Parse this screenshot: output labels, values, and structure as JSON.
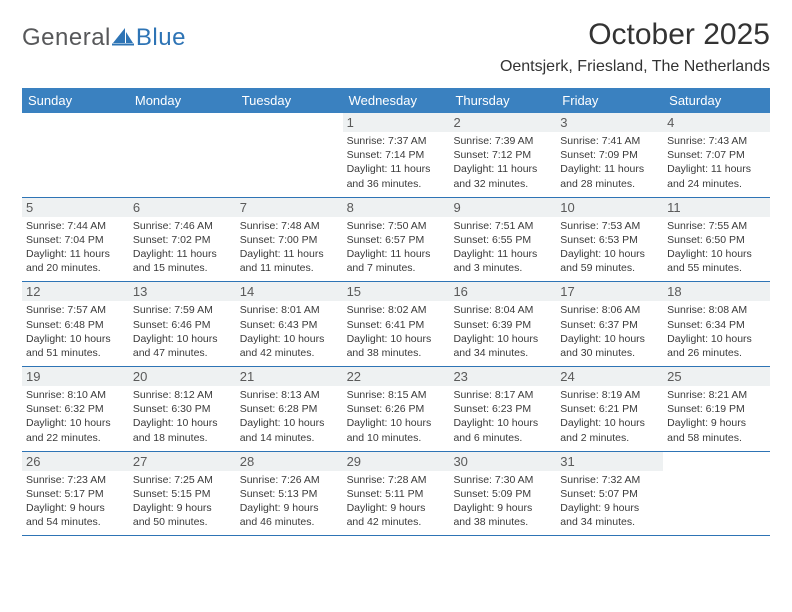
{
  "logo": {
    "word1": "General",
    "word2": "Blue"
  },
  "title": "October 2025",
  "location": "Oentsjerk, Friesland, The Netherlands",
  "colors": {
    "header_bg": "#3a81c0",
    "header_text": "#ffffff",
    "rule": "#2e74b5",
    "daynum_bg": "#eef1f2",
    "body_text": "#333333",
    "logo_gray": "#57585a",
    "logo_blue": "#2e74b5"
  },
  "typography": {
    "title_fontsize": 30,
    "location_fontsize": 16,
    "weekday_fontsize": 13,
    "daynum_fontsize": 13,
    "detail_fontsize": 10.5
  },
  "weekdays": [
    "Sunday",
    "Monday",
    "Tuesday",
    "Wednesday",
    "Thursday",
    "Friday",
    "Saturday"
  ],
  "weeks": [
    [
      {
        "n": "",
        "sr": "",
        "ss": "",
        "dl1": "",
        "dl2": ""
      },
      {
        "n": "",
        "sr": "",
        "ss": "",
        "dl1": "",
        "dl2": ""
      },
      {
        "n": "",
        "sr": "",
        "ss": "",
        "dl1": "",
        "dl2": ""
      },
      {
        "n": "1",
        "sr": "Sunrise: 7:37 AM",
        "ss": "Sunset: 7:14 PM",
        "dl1": "Daylight: 11 hours",
        "dl2": "and 36 minutes."
      },
      {
        "n": "2",
        "sr": "Sunrise: 7:39 AM",
        "ss": "Sunset: 7:12 PM",
        "dl1": "Daylight: 11 hours",
        "dl2": "and 32 minutes."
      },
      {
        "n": "3",
        "sr": "Sunrise: 7:41 AM",
        "ss": "Sunset: 7:09 PM",
        "dl1": "Daylight: 11 hours",
        "dl2": "and 28 minutes."
      },
      {
        "n": "4",
        "sr": "Sunrise: 7:43 AM",
        "ss": "Sunset: 7:07 PM",
        "dl1": "Daylight: 11 hours",
        "dl2": "and 24 minutes."
      }
    ],
    [
      {
        "n": "5",
        "sr": "Sunrise: 7:44 AM",
        "ss": "Sunset: 7:04 PM",
        "dl1": "Daylight: 11 hours",
        "dl2": "and 20 minutes."
      },
      {
        "n": "6",
        "sr": "Sunrise: 7:46 AM",
        "ss": "Sunset: 7:02 PM",
        "dl1": "Daylight: 11 hours",
        "dl2": "and 15 minutes."
      },
      {
        "n": "7",
        "sr": "Sunrise: 7:48 AM",
        "ss": "Sunset: 7:00 PM",
        "dl1": "Daylight: 11 hours",
        "dl2": "and 11 minutes."
      },
      {
        "n": "8",
        "sr": "Sunrise: 7:50 AM",
        "ss": "Sunset: 6:57 PM",
        "dl1": "Daylight: 11 hours",
        "dl2": "and 7 minutes."
      },
      {
        "n": "9",
        "sr": "Sunrise: 7:51 AM",
        "ss": "Sunset: 6:55 PM",
        "dl1": "Daylight: 11 hours",
        "dl2": "and 3 minutes."
      },
      {
        "n": "10",
        "sr": "Sunrise: 7:53 AM",
        "ss": "Sunset: 6:53 PM",
        "dl1": "Daylight: 10 hours",
        "dl2": "and 59 minutes."
      },
      {
        "n": "11",
        "sr": "Sunrise: 7:55 AM",
        "ss": "Sunset: 6:50 PM",
        "dl1": "Daylight: 10 hours",
        "dl2": "and 55 minutes."
      }
    ],
    [
      {
        "n": "12",
        "sr": "Sunrise: 7:57 AM",
        "ss": "Sunset: 6:48 PM",
        "dl1": "Daylight: 10 hours",
        "dl2": "and 51 minutes."
      },
      {
        "n": "13",
        "sr": "Sunrise: 7:59 AM",
        "ss": "Sunset: 6:46 PM",
        "dl1": "Daylight: 10 hours",
        "dl2": "and 47 minutes."
      },
      {
        "n": "14",
        "sr": "Sunrise: 8:01 AM",
        "ss": "Sunset: 6:43 PM",
        "dl1": "Daylight: 10 hours",
        "dl2": "and 42 minutes."
      },
      {
        "n": "15",
        "sr": "Sunrise: 8:02 AM",
        "ss": "Sunset: 6:41 PM",
        "dl1": "Daylight: 10 hours",
        "dl2": "and 38 minutes."
      },
      {
        "n": "16",
        "sr": "Sunrise: 8:04 AM",
        "ss": "Sunset: 6:39 PM",
        "dl1": "Daylight: 10 hours",
        "dl2": "and 34 minutes."
      },
      {
        "n": "17",
        "sr": "Sunrise: 8:06 AM",
        "ss": "Sunset: 6:37 PM",
        "dl1": "Daylight: 10 hours",
        "dl2": "and 30 minutes."
      },
      {
        "n": "18",
        "sr": "Sunrise: 8:08 AM",
        "ss": "Sunset: 6:34 PM",
        "dl1": "Daylight: 10 hours",
        "dl2": "and 26 minutes."
      }
    ],
    [
      {
        "n": "19",
        "sr": "Sunrise: 8:10 AM",
        "ss": "Sunset: 6:32 PM",
        "dl1": "Daylight: 10 hours",
        "dl2": "and 22 minutes."
      },
      {
        "n": "20",
        "sr": "Sunrise: 8:12 AM",
        "ss": "Sunset: 6:30 PM",
        "dl1": "Daylight: 10 hours",
        "dl2": "and 18 minutes."
      },
      {
        "n": "21",
        "sr": "Sunrise: 8:13 AM",
        "ss": "Sunset: 6:28 PM",
        "dl1": "Daylight: 10 hours",
        "dl2": "and 14 minutes."
      },
      {
        "n": "22",
        "sr": "Sunrise: 8:15 AM",
        "ss": "Sunset: 6:26 PM",
        "dl1": "Daylight: 10 hours",
        "dl2": "and 10 minutes."
      },
      {
        "n": "23",
        "sr": "Sunrise: 8:17 AM",
        "ss": "Sunset: 6:23 PM",
        "dl1": "Daylight: 10 hours",
        "dl2": "and 6 minutes."
      },
      {
        "n": "24",
        "sr": "Sunrise: 8:19 AM",
        "ss": "Sunset: 6:21 PM",
        "dl1": "Daylight: 10 hours",
        "dl2": "and 2 minutes."
      },
      {
        "n": "25",
        "sr": "Sunrise: 8:21 AM",
        "ss": "Sunset: 6:19 PM",
        "dl1": "Daylight: 9 hours",
        "dl2": "and 58 minutes."
      }
    ],
    [
      {
        "n": "26",
        "sr": "Sunrise: 7:23 AM",
        "ss": "Sunset: 5:17 PM",
        "dl1": "Daylight: 9 hours",
        "dl2": "and 54 minutes."
      },
      {
        "n": "27",
        "sr": "Sunrise: 7:25 AM",
        "ss": "Sunset: 5:15 PM",
        "dl1": "Daylight: 9 hours",
        "dl2": "and 50 minutes."
      },
      {
        "n": "28",
        "sr": "Sunrise: 7:26 AM",
        "ss": "Sunset: 5:13 PM",
        "dl1": "Daylight: 9 hours",
        "dl2": "and 46 minutes."
      },
      {
        "n": "29",
        "sr": "Sunrise: 7:28 AM",
        "ss": "Sunset: 5:11 PM",
        "dl1": "Daylight: 9 hours",
        "dl2": "and 42 minutes."
      },
      {
        "n": "30",
        "sr": "Sunrise: 7:30 AM",
        "ss": "Sunset: 5:09 PM",
        "dl1": "Daylight: 9 hours",
        "dl2": "and 38 minutes."
      },
      {
        "n": "31",
        "sr": "Sunrise: 7:32 AM",
        "ss": "Sunset: 5:07 PM",
        "dl1": "Daylight: 9 hours",
        "dl2": "and 34 minutes."
      },
      {
        "n": "",
        "sr": "",
        "ss": "",
        "dl1": "",
        "dl2": ""
      }
    ]
  ]
}
